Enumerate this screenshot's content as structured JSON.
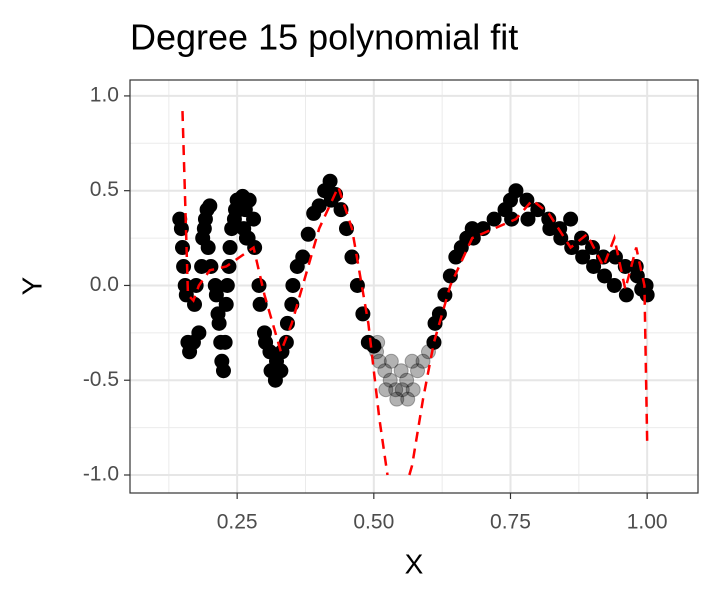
{
  "chart_data": {
    "type": "scatter",
    "title": "Degree 15 polynomial fit",
    "x_label": "X",
    "y_label": "Y",
    "xlim": [
      0.054,
      1.093
    ],
    "ylim": [
      -1.095,
      1.084
    ],
    "xticks": [
      0.25,
      {
        "value": 0.5,
        "label": "0.50"
      },
      0.75,
      {
        "value": 1.0,
        "label": "1.00"
      }
    ],
    "yticks": [
      {
        "value": -1.0,
        "label": "-1.0"
      },
      -0.5,
      {
        "value": 0.0,
        "label": "0.0"
      },
      0.5,
      {
        "value": 1.0,
        "label": "1.0"
      }
    ],
    "x_minor_ticks": [
      0.125,
      0.375,
      0.625,
      0.875
    ],
    "y_minor_ticks": [
      -0.75,
      -0.25,
      0.25,
      0.75
    ],
    "grid": true,
    "series": [
      {
        "color": "#000000",
        "opacity": 1,
        "x": [
          0.145,
          0.148,
          0.15,
          0.152,
          0.155,
          0.157,
          0.16,
          0.163,
          0.17,
          0.172,
          0.175,
          0.18,
          0.185,
          0.187,
          0.19,
          0.192,
          0.195,
          0.197,
          0.2,
          0.202,
          0.21,
          0.212,
          0.215,
          0.217,
          0.22,
          0.222,
          0.225,
          0.228,
          0.23,
          0.232,
          0.235,
          0.237,
          0.24,
          0.245,
          0.247,
          0.25,
          0.253,
          0.26,
          0.262,
          0.265,
          0.267,
          0.27,
          0.272,
          0.28,
          0.282,
          0.29,
          0.292,
          0.3,
          0.302,
          0.31,
          0.312,
          0.32,
          0.322,
          0.33,
          0.332,
          0.34,
          0.342,
          0.35,
          0.352,
          0.36,
          0.37,
          0.38,
          0.39,
          0.4,
          0.41,
          0.42,
          0.422,
          0.43,
          0.44,
          0.45,
          0.46,
          0.47,
          0.48,
          0.49,
          0.5,
          0.61,
          0.612,
          0.62,
          0.63,
          0.64,
          0.65,
          0.66,
          0.67,
          0.68,
          0.682,
          0.7,
          0.72,
          0.74,
          0.75,
          0.752,
          0.76,
          0.78,
          0.782,
          0.8,
          0.82,
          0.822,
          0.84,
          0.842,
          0.86,
          0.862,
          0.88,
          0.882,
          0.9,
          0.902,
          0.92,
          0.922,
          0.94,
          0.942,
          0.96,
          0.962,
          0.98,
          0.982,
          0.99,
          1.0,
          0.998
        ],
        "y": [
          0.35,
          0.3,
          0.2,
          0.1,
          0.0,
          -0.05,
          -0.3,
          -0.35,
          -0.3,
          -0.1,
          0.0,
          -0.25,
          0.1,
          0.25,
          0.3,
          0.35,
          0.4,
          0.2,
          0.42,
          0.1,
          0.0,
          -0.05,
          -0.15,
          -0.2,
          -0.3,
          -0.4,
          -0.45,
          -0.3,
          -0.1,
          0.0,
          0.1,
          0.2,
          0.3,
          0.35,
          0.4,
          0.45,
          0.4,
          0.47,
          0.3,
          0.4,
          0.25,
          0.25,
          0.45,
          0.35,
          0.2,
          0.0,
          -0.1,
          -0.25,
          -0.3,
          -0.35,
          -0.45,
          -0.5,
          -0.4,
          -0.45,
          -0.35,
          -0.3,
          -0.2,
          -0.1,
          0.0,
          0.1,
          0.15,
          0.27,
          0.38,
          0.42,
          0.5,
          0.55,
          0.45,
          0.48,
          0.4,
          0.3,
          0.15,
          0.0,
          -0.15,
          -0.3,
          -0.32,
          -0.3,
          -0.2,
          -0.15,
          -0.05,
          0.05,
          0.15,
          0.2,
          0.25,
          0.3,
          0.25,
          0.3,
          0.35,
          0.4,
          0.45,
          0.35,
          0.5,
          0.45,
          0.35,
          0.4,
          0.35,
          0.3,
          0.3,
          0.25,
          0.35,
          0.2,
          0.25,
          0.15,
          0.2,
          0.1,
          0.15,
          0.05,
          0.0,
          0.15,
          0.1,
          -0.05,
          0.1,
          0.05,
          -0.02,
          -0.05,
          0.0
        ]
      },
      {
        "color": "#000000",
        "opacity": 0.3,
        "x": [
          0.505,
          0.507,
          0.51,
          0.52,
          0.522,
          0.53,
          0.532,
          0.54,
          0.542,
          0.55,
          0.552,
          0.56,
          0.562,
          0.57,
          0.572,
          0.58,
          0.59,
          0.6
        ],
        "y": [
          -0.35,
          -0.3,
          -0.4,
          -0.45,
          -0.55,
          -0.5,
          -0.4,
          -0.55,
          -0.6,
          -0.45,
          -0.55,
          -0.5,
          -0.6,
          -0.4,
          -0.55,
          -0.45,
          -0.4,
          -0.35
        ]
      }
    ],
    "line": {
      "color": "#ff0000",
      "dashed": true,
      "x": [
        0.15,
        0.16,
        0.17,
        0.18,
        0.2,
        0.23,
        0.255,
        0.28,
        0.3,
        0.33,
        0.35,
        0.37,
        0.4,
        0.435,
        0.46,
        0.49,
        0.51,
        0.525,
        0.545,
        0.565,
        0.57,
        0.59,
        0.61,
        0.64,
        0.68,
        0.72,
        0.76,
        0.79,
        0.82,
        0.86,
        0.89,
        0.92,
        0.94,
        0.96,
        0.98,
        0.995,
        1.0
      ],
      "y": [
        0.92,
        -0.05,
        -0.08,
        0.0,
        0.08,
        0.1,
        0.15,
        0.2,
        -0.05,
        -0.35,
        -0.2,
        0.0,
        0.3,
        0.52,
        0.3,
        -0.2,
        -0.7,
        -1.0,
        null,
        -1.0,
        -0.95,
        -0.6,
        -0.3,
        0.0,
        0.25,
        0.3,
        0.35,
        0.45,
        0.38,
        0.2,
        0.27,
        0.1,
        0.25,
        -0.02,
        0.2,
        0.0,
        -0.82
      ]
    }
  }
}
